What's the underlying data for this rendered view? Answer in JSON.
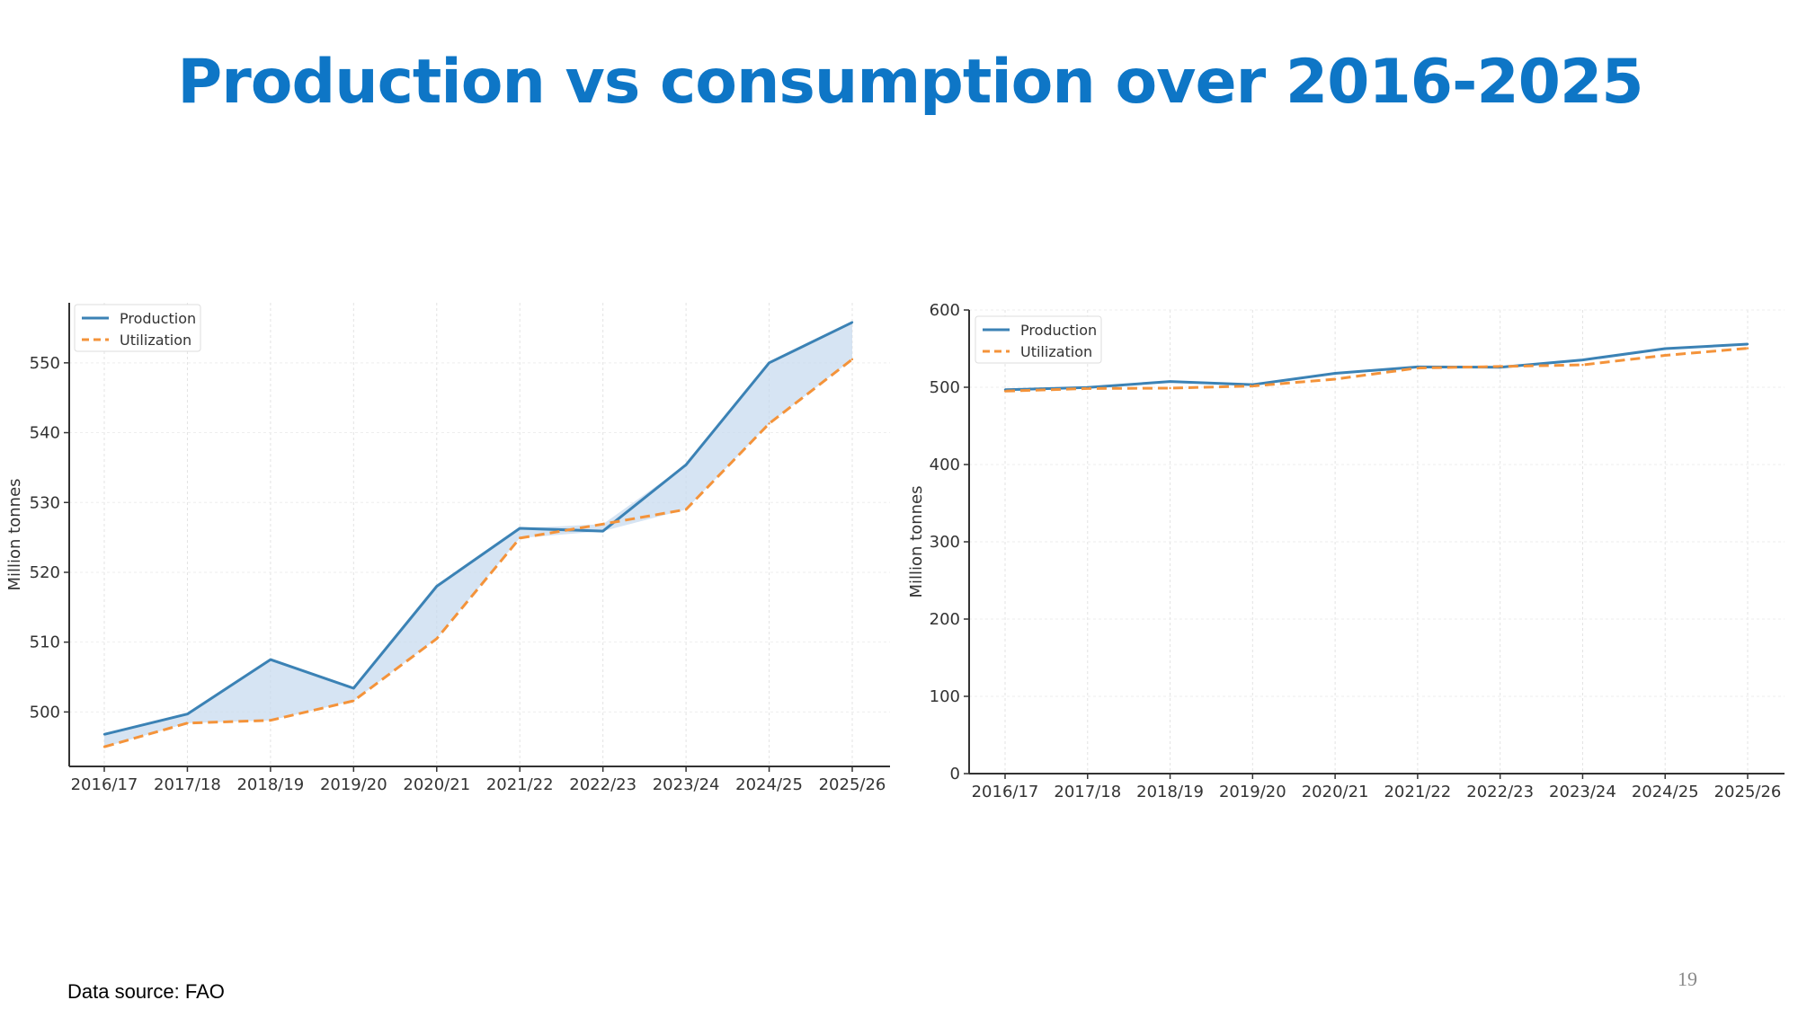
{
  "slide": {
    "title": "Production vs consumption over 2016-2025",
    "source": "Data source: FAO",
    "page_number": "19"
  },
  "colors": {
    "title": "#0e76c6",
    "production": "#3b82b5",
    "utilization": "#f4933a",
    "fill": "#c5d9ee"
  },
  "chart_data": [
    {
      "type": "line",
      "x": [
        "2016/17",
        "2017/18",
        "2018/19",
        "2019/20",
        "2020/21",
        "2021/22",
        "2022/23",
        "2023/24",
        "2024/25",
        "2025/26"
      ],
      "series": [
        {
          "name": "Production",
          "values": [
            496.8,
            499.7,
            507.5,
            503.4,
            518.0,
            526.3,
            525.9,
            535.4,
            550.0,
            555.8
          ]
        },
        {
          "name": "Utilization",
          "values": [
            495.0,
            498.4,
            498.8,
            501.6,
            510.5,
            524.9,
            526.9,
            529.0,
            541.3,
            550.5
          ]
        }
      ],
      "ylabel": "Million tonnes",
      "yticks": [
        500,
        510,
        520,
        530,
        540,
        550
      ],
      "ylim": [
        492.2,
        558.6
      ],
      "shaded_between_series": true,
      "legend": "top-left",
      "grid": true
    },
    {
      "type": "line",
      "x": [
        "2016/17",
        "2017/18",
        "2018/19",
        "2019/20",
        "2020/21",
        "2021/22",
        "2022/23",
        "2023/24",
        "2024/25",
        "2025/26"
      ],
      "series": [
        {
          "name": "Production",
          "values": [
            496.8,
            499.7,
            507.5,
            503.4,
            518.0,
            526.3,
            525.9,
            535.4,
            550.0,
            555.8
          ]
        },
        {
          "name": "Utilization",
          "values": [
            495.0,
            498.4,
            498.8,
            501.6,
            510.5,
            524.9,
            526.9,
            529.0,
            541.3,
            550.5
          ]
        }
      ],
      "ylabel": "Million tonnes",
      "yticks": [
        0,
        100,
        200,
        300,
        400,
        500,
        600
      ],
      "ylim": [
        0,
        600
      ],
      "shaded_between_series": false,
      "legend": "top-left",
      "grid": true
    }
  ]
}
